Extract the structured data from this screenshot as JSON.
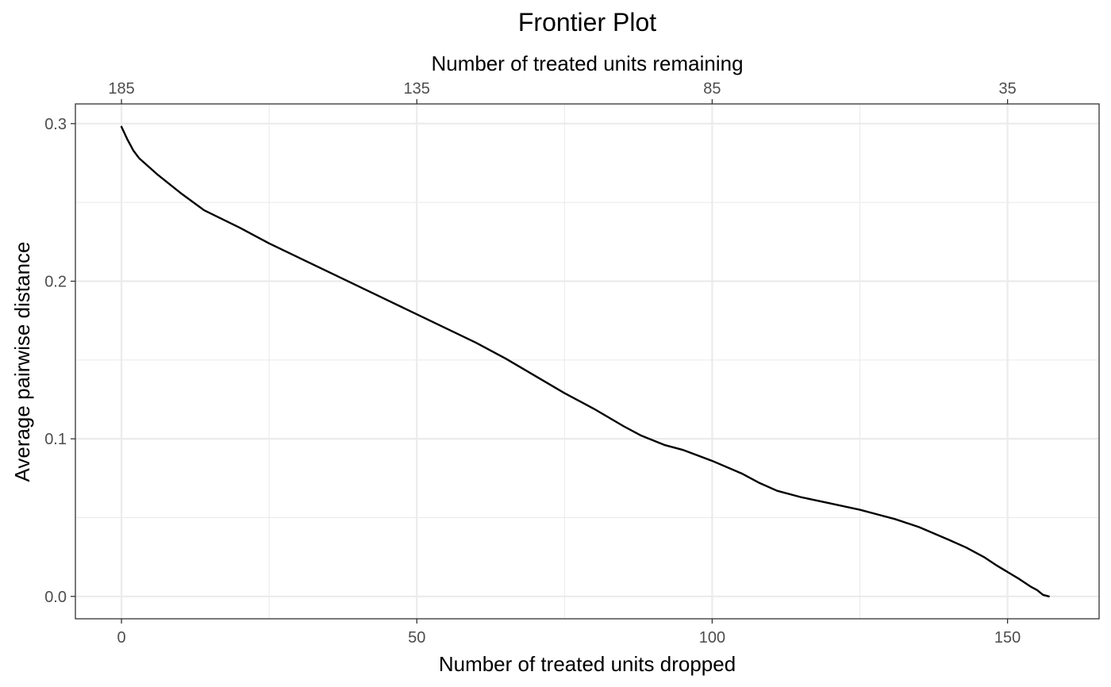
{
  "chart_data": {
    "type": "line",
    "title": "Frontier Plot",
    "xlabel": "Number of treated units dropped",
    "ylabel": "Average pairwise distance",
    "x2label": "Number of treated units remaining",
    "xlim": [
      -7.8,
      165.5
    ],
    "ylim": [
      -0.0142,
      0.3125
    ],
    "x_ticks": [
      0,
      50,
      100,
      150
    ],
    "x_tick_labels": [
      "0",
      "50",
      "100",
      "150"
    ],
    "x2_ticks": [
      0,
      50,
      100,
      150
    ],
    "x2_tick_labels": [
      "185",
      "135",
      "85",
      "35"
    ],
    "y_ticks": [
      0.0,
      0.1,
      0.2,
      0.3
    ],
    "y_tick_labels": [
      "0.0",
      "0.1",
      "0.2",
      "0.3"
    ],
    "y_minor_ticks": [
      0.05,
      0.15,
      0.25
    ],
    "x_minor_ticks": [
      25,
      75,
      125
    ],
    "grid": true,
    "line_color": "#000000",
    "grid_color": "#ebebeb",
    "series": [
      {
        "x": [
          0,
          1,
          2,
          3,
          6,
          10,
          14,
          20,
          25,
          30,
          35,
          40,
          45,
          50,
          55,
          60,
          65,
          70,
          75,
          80,
          85,
          88,
          92,
          95,
          100,
          105,
          108,
          111,
          115,
          120,
          125,
          128,
          131,
          135,
          140,
          143,
          146,
          148,
          152,
          154,
          155,
          156,
          157
        ],
        "y": [
          0.298,
          0.29,
          0.283,
          0.278,
          0.268,
          0.256,
          0.245,
          0.234,
          0.224,
          0.215,
          0.206,
          0.197,
          0.188,
          0.179,
          0.17,
          0.161,
          0.151,
          0.14,
          0.129,
          0.119,
          0.108,
          0.102,
          0.096,
          0.093,
          0.086,
          0.078,
          0.072,
          0.067,
          0.063,
          0.059,
          0.055,
          0.052,
          0.049,
          0.044,
          0.036,
          0.031,
          0.025,
          0.02,
          0.011,
          0.006,
          0.004,
          0.001,
          0.0
        ]
      }
    ]
  }
}
